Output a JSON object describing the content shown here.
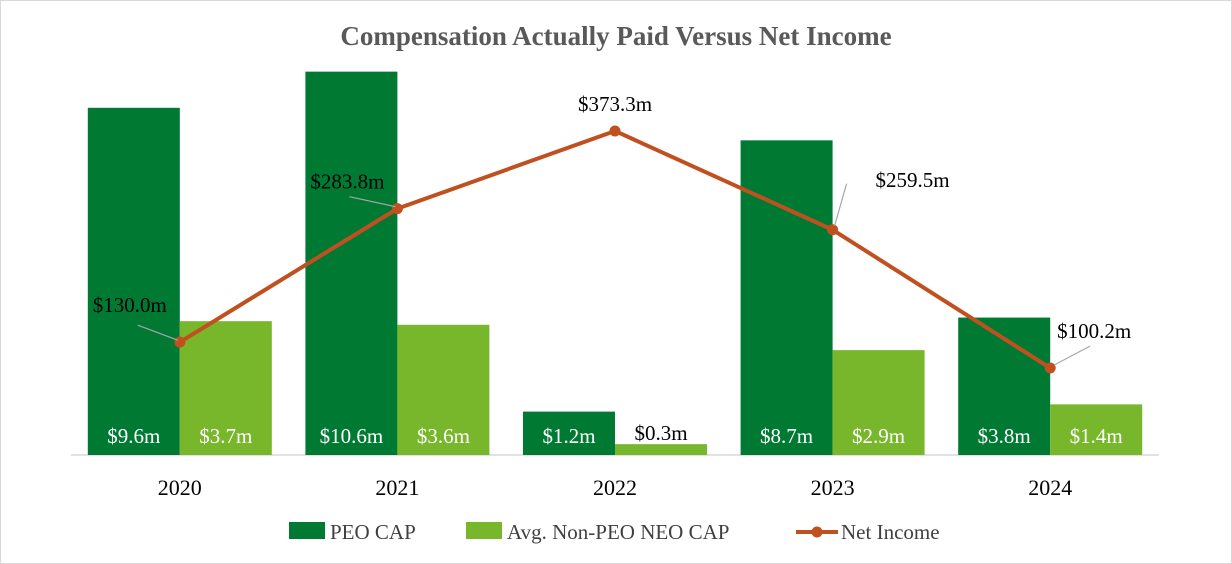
{
  "chart_data": {
    "type": "bar",
    "title": "Compensation Actually Paid Versus Net Income",
    "xlabel": "",
    "ylabel": "",
    "categories": [
      "2020",
      "2021",
      "2022",
      "2023",
      "2024"
    ],
    "series": [
      {
        "name": "PEO CAP",
        "type": "bar",
        "color": "#007A33",
        "values": [
          9.6,
          10.6,
          1.2,
          8.7,
          3.8
        ],
        "labels": [
          "$9.6m",
          "$10.6m",
          "$1.2m",
          "$8.7m",
          "$3.8m"
        ]
      },
      {
        "name": "Avg. Non-PEO NEO CAP",
        "type": "bar",
        "color": "#78B72B",
        "values": [
          3.7,
          3.6,
          0.3,
          2.9,
          1.4
        ],
        "labels": [
          "$3.7m",
          "$3.6m",
          "$0.3m",
          "$2.9m",
          "$1.4m"
        ]
      },
      {
        "name": "Net Income",
        "type": "line",
        "color": "#C0501F",
        "values": [
          130.0,
          283.8,
          373.3,
          259.5,
          100.2
        ],
        "labels": [
          "$130.0m",
          "$283.8m",
          "$373.3m",
          "$259.5m",
          "$100.2m"
        ]
      }
    ],
    "bar_axis_range": [
      0,
      12
    ],
    "line_axis_range": [
      0,
      500
    ],
    "axes_visible": false,
    "grid": false,
    "legend_position": "bottom"
  }
}
